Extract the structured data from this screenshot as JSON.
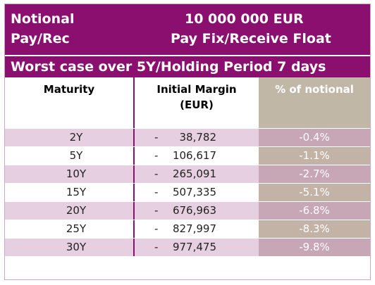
{
  "header": {
    "left_line1": "Notional",
    "left_line2": "Pay/Rec",
    "right_line1": "10 000 000   EUR",
    "right_line2": "Pay Fix/Receive Float",
    "subtitle": "Worst case over 5Y/Holding Period 7 days"
  },
  "columns": {
    "maturity": "Maturity",
    "initial_margin_line1": "Initial Margin",
    "initial_margin_line2": "(EUR)",
    "pct_notional": "% of notional"
  },
  "rows": [
    {
      "maturity": "2Y",
      "sign": "-",
      "margin": "38,782",
      "pct": "-0.4%"
    },
    {
      "maturity": "5Y",
      "sign": "-",
      "margin": "106,617",
      "pct": "-1.1%"
    },
    {
      "maturity": "10Y",
      "sign": "-",
      "margin": "265,091",
      "pct": "-2.7%"
    },
    {
      "maturity": "15Y",
      "sign": "-",
      "margin": "507,335",
      "pct": "-5.1%"
    },
    {
      "maturity": "20Y",
      "sign": "-",
      "margin": "676,963",
      "pct": "-6.8%"
    },
    {
      "maturity": "25Y",
      "sign": "-",
      "margin": "827,997",
      "pct": "-8.3%"
    },
    {
      "maturity": "30Y",
      "sign": "-",
      "margin": "977,475",
      "pct": "-9.8%"
    }
  ],
  "colors": {
    "header_bg": "#8a0f6f",
    "row_stripe": "#e6cfe0",
    "pct_col_bg": "#c1b7a6"
  }
}
